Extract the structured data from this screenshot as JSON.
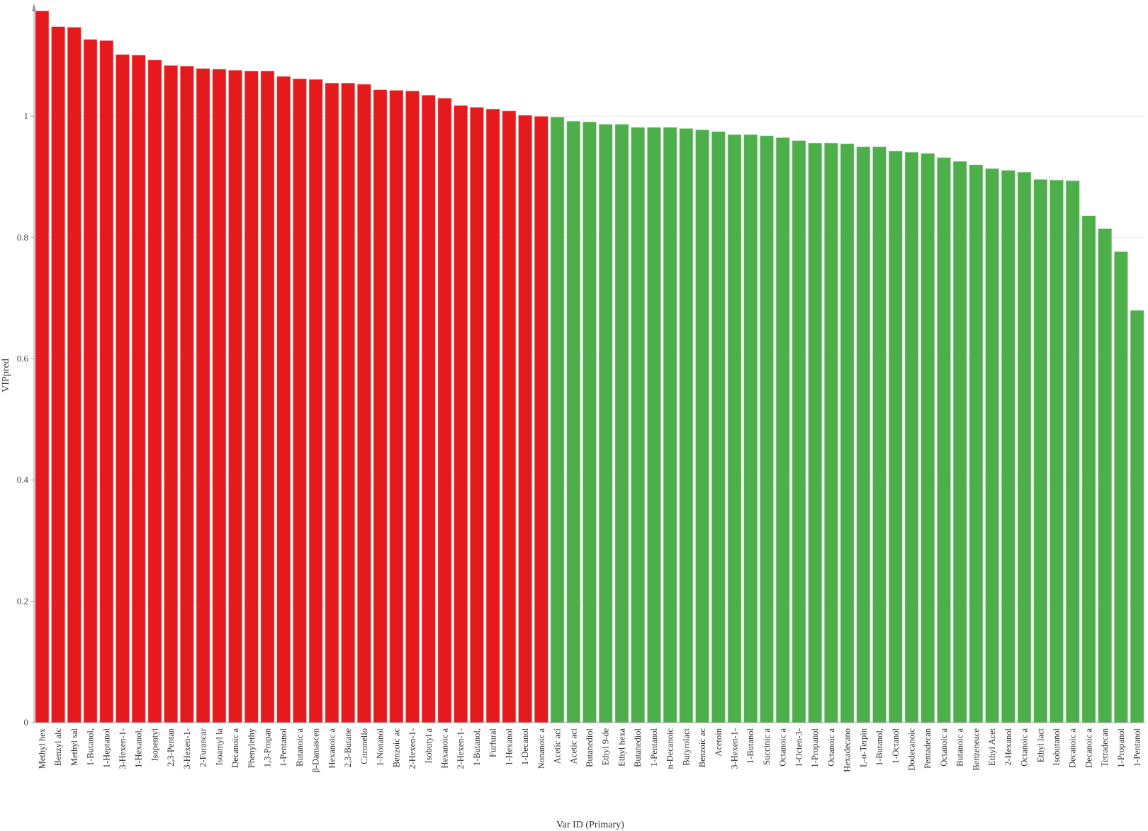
{
  "chart_data": {
    "type": "bar",
    "xlabel": "Var ID (Primary)",
    "ylabel": "VIPpred",
    "ylim": [
      0,
      1.18
    ],
    "yticks": [
      0,
      0.2,
      0.4,
      0.6,
      0.8,
      1
    ],
    "grid": "horizontal",
    "colors": {
      "above_1": "#e41a1c",
      "below_1": "#4daf4a"
    },
    "categories": [
      "Methyl hex",
      "Benzyl alc",
      "Methyl sal",
      "1-Butanol,",
      "1-Heptanol",
      "3-Hexen-1-",
      "1-Hexanol,",
      "Isopentyl",
      "2,3-Pentan",
      "3-Hexen-1-",
      "2-Furancar",
      "Isoamyl la",
      "Decanoic a",
      "Phenylethy",
      "1,3-Propan",
      "1-Pentanol",
      "Butanoic a",
      "β-Damascen",
      "Hexanoic a",
      "2,3-Butane",
      "Citronello",
      "1-Nonanol",
      "Benzoic ac",
      "2-Hexen-1-",
      "Isobutyl a",
      "Hexanoic a",
      "2-Hexen-1-",
      "1-Butanol,",
      "Furfural",
      "1-Hexanol",
      "1-Decanol",
      "Nonanoic a",
      "Acetic aci",
      "Acetic aci",
      "Butanediol",
      "Ethyl 9-de",
      "Ethyl hexa",
      "Butanediol",
      "1-Pentanol",
      "n-Decanoic",
      "Butyrolact",
      "Benzoic ac",
      "Acetoin",
      "3-Hexen-1-",
      "1-Butanol",
      "Succinic a",
      "Octanoic a",
      "1-Octen-3-",
      "1-Propanol",
      "Octanoic a",
      "Hexadecano",
      "L-α-Terpin",
      "1-Butanol,",
      "1-Octanol",
      "Dodecanoic",
      "Pentadecan",
      "Octanoic a",
      "Butanoic a",
      "Benzeneace",
      "Ethyl Acet",
      "2-Hexanol",
      "Octanoic a",
      "Ethyl lact",
      "Isobutanol",
      "Decanoic a",
      "Decanoic a",
      "Tetradecan",
      "1-Propanol",
      "1-Pentanol"
    ],
    "values": [
      1.174,
      1.148,
      1.147,
      1.127,
      1.125,
      1.102,
      1.101,
      1.093,
      1.084,
      1.083,
      1.079,
      1.078,
      1.076,
      1.075,
      1.075,
      1.066,
      1.062,
      1.061,
      1.055,
      1.055,
      1.053,
      1.044,
      1.043,
      1.042,
      1.035,
      1.03,
      1.018,
      1.015,
      1.012,
      1.009,
      1.002,
      1.0,
      0.999,
      0.992,
      0.991,
      0.987,
      0.987,
      0.982,
      0.982,
      0.982,
      0.98,
      0.978,
      0.975,
      0.97,
      0.97,
      0.968,
      0.965,
      0.96,
      0.956,
      0.956,
      0.955,
      0.95,
      0.95,
      0.943,
      0.941,
      0.939,
      0.932,
      0.926,
      0.92,
      0.914,
      0.911,
      0.908,
      0.896,
      0.895,
      0.894,
      0.836,
      0.815,
      0.777,
      0.68
    ]
  }
}
